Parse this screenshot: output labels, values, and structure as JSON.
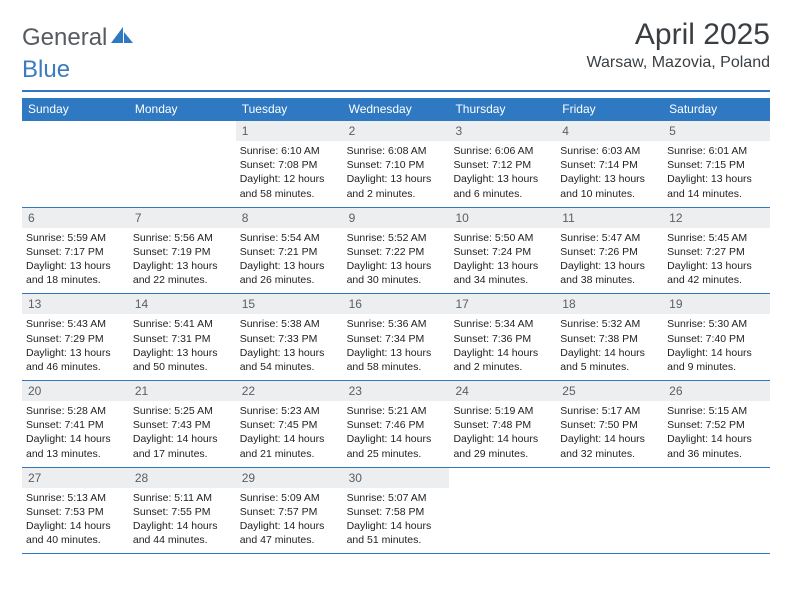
{
  "brand": {
    "part1": "General",
    "part2": "Blue"
  },
  "title": "April 2025",
  "location": "Warsaw, Mazovia, Poland",
  "colors": {
    "header_bg": "#2f78c2",
    "header_text": "#ffffff",
    "daynum_bg": "#eceeef",
    "daynum_text": "#5a5f64",
    "body_text": "#222222",
    "logo_gray": "#555b60",
    "logo_blue": "#3b7bbf"
  },
  "weekdays": [
    "Sunday",
    "Monday",
    "Tuesday",
    "Wednesday",
    "Thursday",
    "Friday",
    "Saturday"
  ],
  "weeks": [
    [
      {
        "empty": true
      },
      {
        "empty": true
      },
      {
        "num": "1",
        "sunrise": "Sunrise: 6:10 AM",
        "sunset": "Sunset: 7:08 PM",
        "daylight1": "Daylight: 12 hours",
        "daylight2": "and 58 minutes."
      },
      {
        "num": "2",
        "sunrise": "Sunrise: 6:08 AM",
        "sunset": "Sunset: 7:10 PM",
        "daylight1": "Daylight: 13 hours",
        "daylight2": "and 2 minutes."
      },
      {
        "num": "3",
        "sunrise": "Sunrise: 6:06 AM",
        "sunset": "Sunset: 7:12 PM",
        "daylight1": "Daylight: 13 hours",
        "daylight2": "and 6 minutes."
      },
      {
        "num": "4",
        "sunrise": "Sunrise: 6:03 AM",
        "sunset": "Sunset: 7:14 PM",
        "daylight1": "Daylight: 13 hours",
        "daylight2": "and 10 minutes."
      },
      {
        "num": "5",
        "sunrise": "Sunrise: 6:01 AM",
        "sunset": "Sunset: 7:15 PM",
        "daylight1": "Daylight: 13 hours",
        "daylight2": "and 14 minutes."
      }
    ],
    [
      {
        "num": "6",
        "sunrise": "Sunrise: 5:59 AM",
        "sunset": "Sunset: 7:17 PM",
        "daylight1": "Daylight: 13 hours",
        "daylight2": "and 18 minutes."
      },
      {
        "num": "7",
        "sunrise": "Sunrise: 5:56 AM",
        "sunset": "Sunset: 7:19 PM",
        "daylight1": "Daylight: 13 hours",
        "daylight2": "and 22 minutes."
      },
      {
        "num": "8",
        "sunrise": "Sunrise: 5:54 AM",
        "sunset": "Sunset: 7:21 PM",
        "daylight1": "Daylight: 13 hours",
        "daylight2": "and 26 minutes."
      },
      {
        "num": "9",
        "sunrise": "Sunrise: 5:52 AM",
        "sunset": "Sunset: 7:22 PM",
        "daylight1": "Daylight: 13 hours",
        "daylight2": "and 30 minutes."
      },
      {
        "num": "10",
        "sunrise": "Sunrise: 5:50 AM",
        "sunset": "Sunset: 7:24 PM",
        "daylight1": "Daylight: 13 hours",
        "daylight2": "and 34 minutes."
      },
      {
        "num": "11",
        "sunrise": "Sunrise: 5:47 AM",
        "sunset": "Sunset: 7:26 PM",
        "daylight1": "Daylight: 13 hours",
        "daylight2": "and 38 minutes."
      },
      {
        "num": "12",
        "sunrise": "Sunrise: 5:45 AM",
        "sunset": "Sunset: 7:27 PM",
        "daylight1": "Daylight: 13 hours",
        "daylight2": "and 42 minutes."
      }
    ],
    [
      {
        "num": "13",
        "sunrise": "Sunrise: 5:43 AM",
        "sunset": "Sunset: 7:29 PM",
        "daylight1": "Daylight: 13 hours",
        "daylight2": "and 46 minutes."
      },
      {
        "num": "14",
        "sunrise": "Sunrise: 5:41 AM",
        "sunset": "Sunset: 7:31 PM",
        "daylight1": "Daylight: 13 hours",
        "daylight2": "and 50 minutes."
      },
      {
        "num": "15",
        "sunrise": "Sunrise: 5:38 AM",
        "sunset": "Sunset: 7:33 PM",
        "daylight1": "Daylight: 13 hours",
        "daylight2": "and 54 minutes."
      },
      {
        "num": "16",
        "sunrise": "Sunrise: 5:36 AM",
        "sunset": "Sunset: 7:34 PM",
        "daylight1": "Daylight: 13 hours",
        "daylight2": "and 58 minutes."
      },
      {
        "num": "17",
        "sunrise": "Sunrise: 5:34 AM",
        "sunset": "Sunset: 7:36 PM",
        "daylight1": "Daylight: 14 hours",
        "daylight2": "and 2 minutes."
      },
      {
        "num": "18",
        "sunrise": "Sunrise: 5:32 AM",
        "sunset": "Sunset: 7:38 PM",
        "daylight1": "Daylight: 14 hours",
        "daylight2": "and 5 minutes."
      },
      {
        "num": "19",
        "sunrise": "Sunrise: 5:30 AM",
        "sunset": "Sunset: 7:40 PM",
        "daylight1": "Daylight: 14 hours",
        "daylight2": "and 9 minutes."
      }
    ],
    [
      {
        "num": "20",
        "sunrise": "Sunrise: 5:28 AM",
        "sunset": "Sunset: 7:41 PM",
        "daylight1": "Daylight: 14 hours",
        "daylight2": "and 13 minutes."
      },
      {
        "num": "21",
        "sunrise": "Sunrise: 5:25 AM",
        "sunset": "Sunset: 7:43 PM",
        "daylight1": "Daylight: 14 hours",
        "daylight2": "and 17 minutes."
      },
      {
        "num": "22",
        "sunrise": "Sunrise: 5:23 AM",
        "sunset": "Sunset: 7:45 PM",
        "daylight1": "Daylight: 14 hours",
        "daylight2": "and 21 minutes."
      },
      {
        "num": "23",
        "sunrise": "Sunrise: 5:21 AM",
        "sunset": "Sunset: 7:46 PM",
        "daylight1": "Daylight: 14 hours",
        "daylight2": "and 25 minutes."
      },
      {
        "num": "24",
        "sunrise": "Sunrise: 5:19 AM",
        "sunset": "Sunset: 7:48 PM",
        "daylight1": "Daylight: 14 hours",
        "daylight2": "and 29 minutes."
      },
      {
        "num": "25",
        "sunrise": "Sunrise: 5:17 AM",
        "sunset": "Sunset: 7:50 PM",
        "daylight1": "Daylight: 14 hours",
        "daylight2": "and 32 minutes."
      },
      {
        "num": "26",
        "sunrise": "Sunrise: 5:15 AM",
        "sunset": "Sunset: 7:52 PM",
        "daylight1": "Daylight: 14 hours",
        "daylight2": "and 36 minutes."
      }
    ],
    [
      {
        "num": "27",
        "sunrise": "Sunrise: 5:13 AM",
        "sunset": "Sunset: 7:53 PM",
        "daylight1": "Daylight: 14 hours",
        "daylight2": "and 40 minutes."
      },
      {
        "num": "28",
        "sunrise": "Sunrise: 5:11 AM",
        "sunset": "Sunset: 7:55 PM",
        "daylight1": "Daylight: 14 hours",
        "daylight2": "and 44 minutes."
      },
      {
        "num": "29",
        "sunrise": "Sunrise: 5:09 AM",
        "sunset": "Sunset: 7:57 PM",
        "daylight1": "Daylight: 14 hours",
        "daylight2": "and 47 minutes."
      },
      {
        "num": "30",
        "sunrise": "Sunrise: 5:07 AM",
        "sunset": "Sunset: 7:58 PM",
        "daylight1": "Daylight: 14 hours",
        "daylight2": "and 51 minutes."
      },
      {
        "empty": true
      },
      {
        "empty": true
      },
      {
        "empty": true
      }
    ]
  ]
}
